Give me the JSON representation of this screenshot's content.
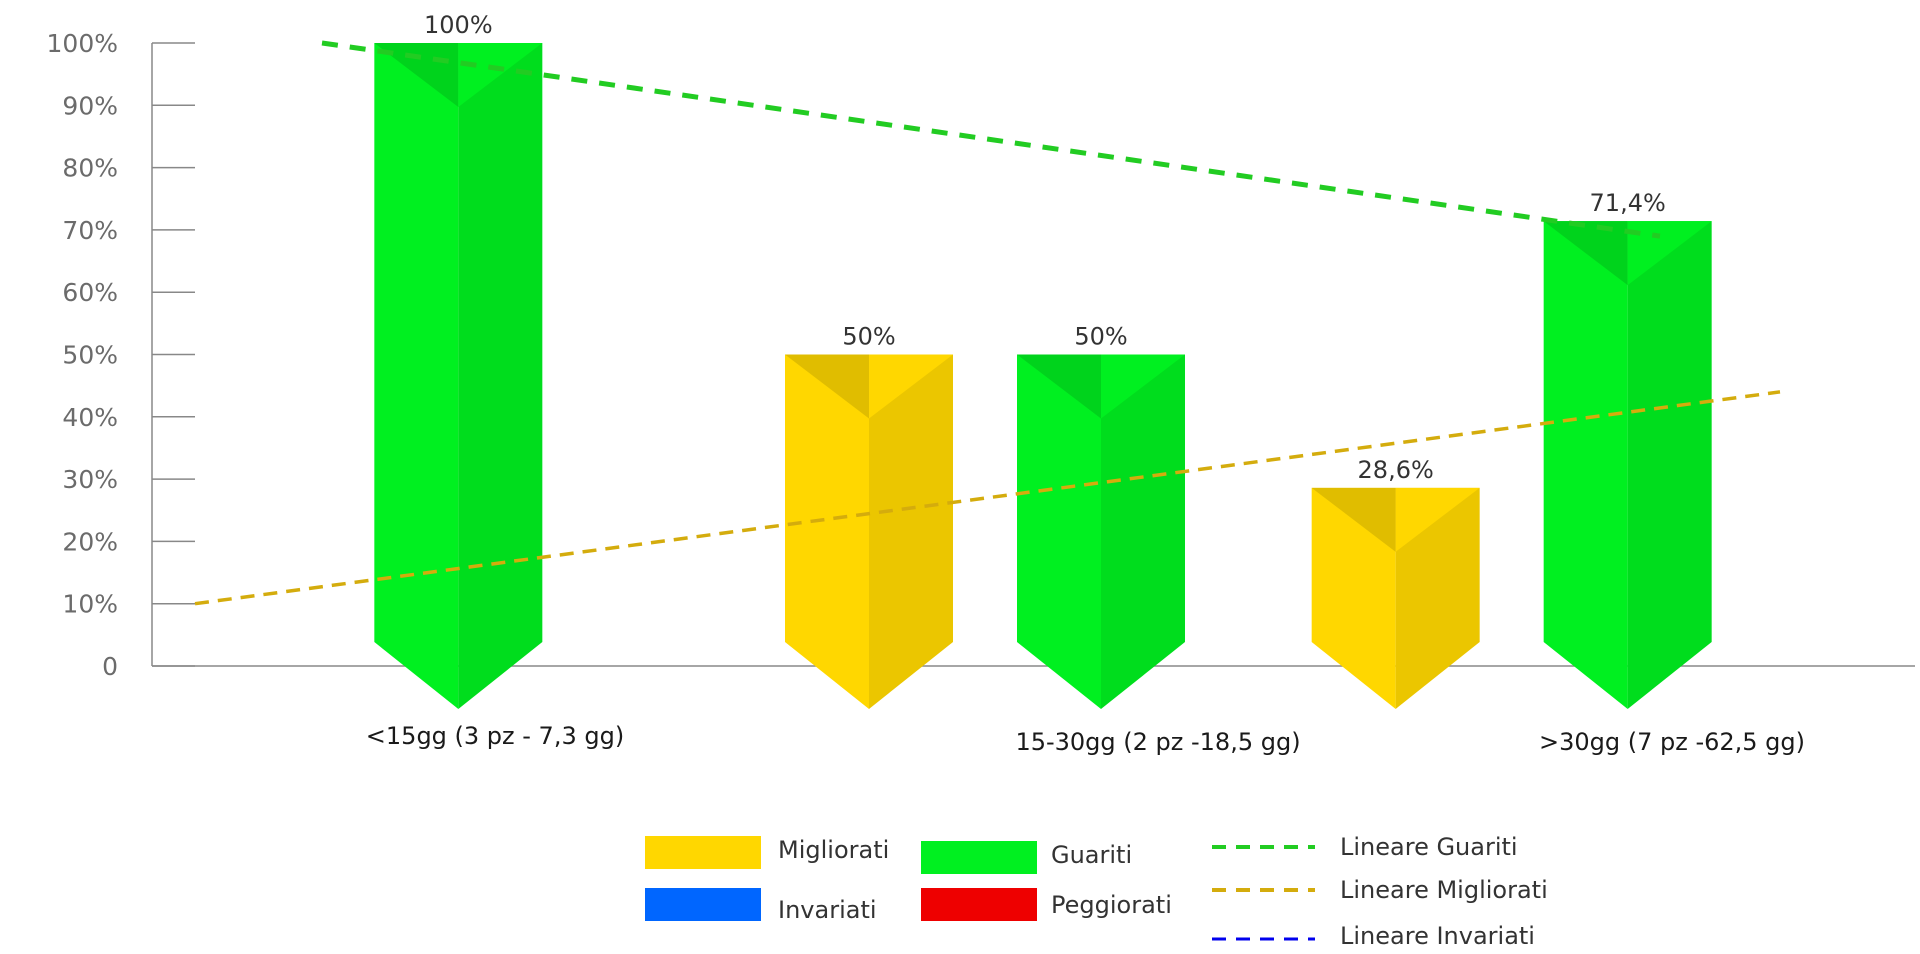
{
  "chart_data": {
    "type": "bar",
    "categories": [
      "<15gg (3 pz - 7,3 gg)",
      "15-30gg (2 pz -18,5 gg)",
      ">30gg (7 pz -62,5 gg)"
    ],
    "y_ticks": [
      "0",
      "10%",
      "20%",
      "30%",
      "40%",
      "50%",
      "60%",
      "70%",
      "80%",
      "90%",
      "100%"
    ],
    "ylim": [
      0,
      100
    ],
    "grid": false,
    "legend_position": "bottom",
    "series": [
      {
        "name": "Migliorati",
        "color": "#FFD700",
        "values": [
          0,
          50,
          28.6
        ],
        "labels": [
          "",
          "50%",
          "28,6%"
        ]
      },
      {
        "name": "Guariti",
        "color": "#00F020",
        "values": [
          100,
          50,
          71.4
        ],
        "labels": [
          "100%",
          "50%",
          "71,4%"
        ]
      },
      {
        "name": "Invariati",
        "color": "#0066FF",
        "values": [
          0,
          0,
          0
        ],
        "labels": [
          "",
          "",
          ""
        ]
      },
      {
        "name": "Peggiorati",
        "color": "#EE0000",
        "values": [
          0,
          0,
          0
        ],
        "labels": [
          "",
          "",
          ""
        ]
      }
    ],
    "trendlines": [
      {
        "name": "Lineare Guariti",
        "color": "#22CC22",
        "start": 100,
        "end": 69
      },
      {
        "name": "Lineare Migliorati",
        "color": "#D4AC0D",
        "start": 10,
        "end": 44
      },
      {
        "name": "Lineare Invariati",
        "color": "#0000EE"
      }
    ]
  }
}
